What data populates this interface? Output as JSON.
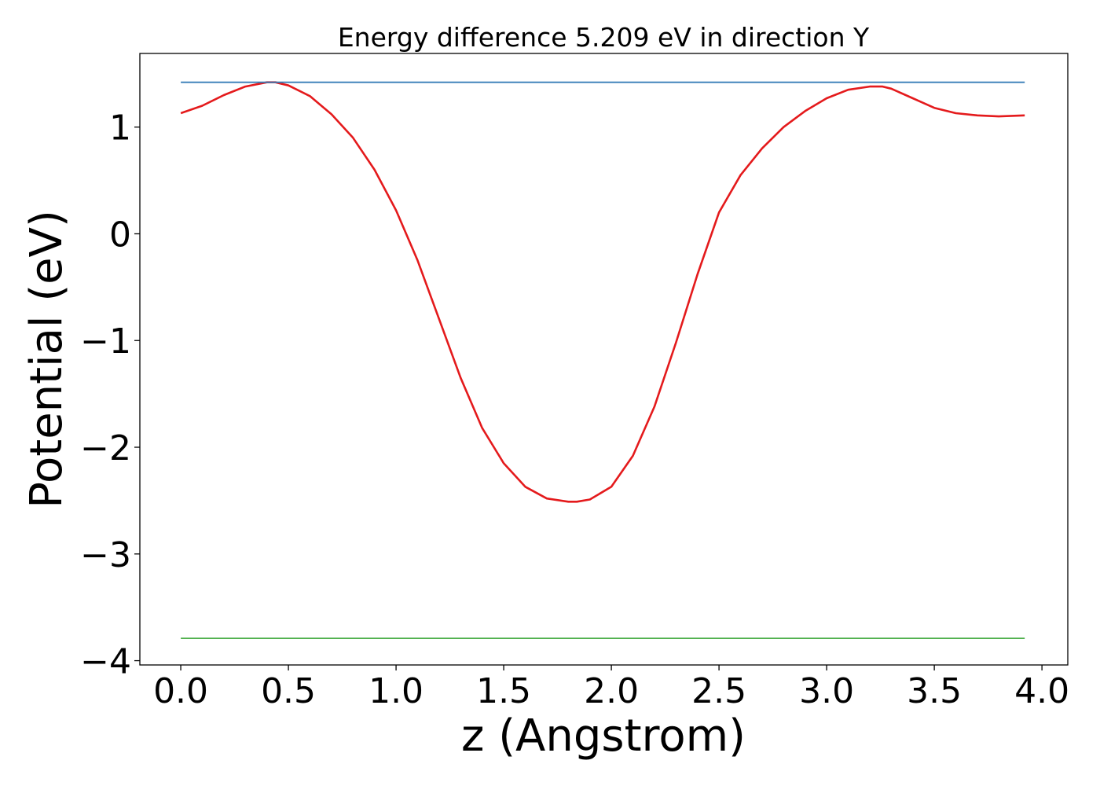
{
  "chart_data": {
    "type": "line",
    "title": "Energy difference 5.209 eV in direction Y",
    "xlabel": "z (Angstrom)",
    "ylabel": "Potential (eV)",
    "xlim": [
      -0.19,
      4.12
    ],
    "ylim": [
      -4.04,
      1.69
    ],
    "xticks": [
      0.0,
      0.5,
      1.0,
      1.5,
      2.0,
      2.5,
      3.0,
      3.5,
      4.0
    ],
    "xtick_labels": [
      "0.0",
      "0.5",
      "1.0",
      "1.5",
      "2.0",
      "2.5",
      "3.0",
      "3.5",
      "4.0"
    ],
    "yticks": [
      1,
      0,
      -1,
      -2,
      -3,
      -4
    ],
    "ytick_labels": [
      "1",
      "0",
      "−1",
      "−2",
      "−3",
      "−4"
    ],
    "grid": false,
    "legend": "none",
    "series": [
      {
        "color": "#e41a1c",
        "x": [
          0.0,
          0.1,
          0.2,
          0.3,
          0.4,
          0.44,
          0.5,
          0.6,
          0.7,
          0.8,
          0.9,
          1.0,
          1.1,
          1.2,
          1.3,
          1.4,
          1.5,
          1.6,
          1.7,
          1.8,
          1.84,
          1.9,
          2.0,
          2.1,
          2.2,
          2.3,
          2.4,
          2.5,
          2.6,
          2.7,
          2.8,
          2.9,
          3.0,
          3.1,
          3.2,
          3.26,
          3.3,
          3.4,
          3.5,
          3.6,
          3.7,
          3.8,
          3.92
        ],
        "y": [
          1.13,
          1.2,
          1.3,
          1.38,
          1.42,
          1.42,
          1.39,
          1.29,
          1.12,
          0.9,
          0.6,
          0.22,
          -0.25,
          -0.8,
          -1.35,
          -1.82,
          -2.15,
          -2.37,
          -2.48,
          -2.51,
          -2.51,
          -2.49,
          -2.37,
          -2.08,
          -1.62,
          -1.02,
          -0.38,
          0.2,
          0.55,
          0.8,
          1.0,
          1.15,
          1.27,
          1.35,
          1.38,
          1.38,
          1.36,
          1.27,
          1.18,
          1.13,
          1.11,
          1.1,
          1.11
        ]
      },
      {
        "color": "#377eb8",
        "x": [
          0.0,
          3.92
        ],
        "y": [
          1.42,
          1.42
        ]
      },
      {
        "color": "#4daf4a",
        "x": [
          0.0,
          3.92
        ],
        "y": [
          -3.79,
          -3.79
        ]
      }
    ]
  }
}
